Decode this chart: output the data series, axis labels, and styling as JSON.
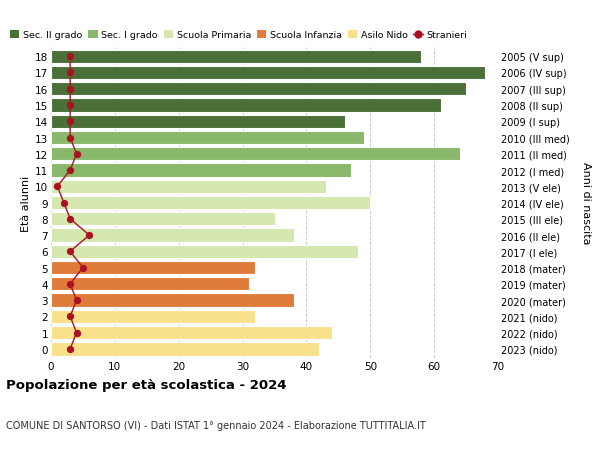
{
  "ages": [
    0,
    1,
    2,
    3,
    4,
    5,
    6,
    7,
    8,
    9,
    10,
    11,
    12,
    13,
    14,
    15,
    16,
    17,
    18
  ],
  "bar_values": [
    42,
    44,
    32,
    38,
    31,
    32,
    48,
    38,
    35,
    50,
    43,
    47,
    64,
    49,
    46,
    61,
    65,
    68,
    58
  ],
  "right_labels": [
    "2023 (nido)",
    "2022 (nido)",
    "2021 (nido)",
    "2020 (mater)",
    "2019 (mater)",
    "2018 (mater)",
    "2017 (I ele)",
    "2016 (II ele)",
    "2015 (III ele)",
    "2014 (IV ele)",
    "2013 (V ele)",
    "2012 (I med)",
    "2011 (II med)",
    "2010 (III med)",
    "2009 (I sup)",
    "2008 (II sup)",
    "2007 (III sup)",
    "2006 (IV sup)",
    "2005 (V sup)"
  ],
  "bar_colors": [
    "#f9e08a",
    "#f9e08a",
    "#f9e08a",
    "#e07c3a",
    "#e07c3a",
    "#e07c3a",
    "#d4e8b0",
    "#d4e8b0",
    "#d4e8b0",
    "#d4e8b0",
    "#d4e8b0",
    "#8ab86a",
    "#8ab86a",
    "#8ab86a",
    "#4a7038",
    "#4a7038",
    "#4a7038",
    "#4a7038",
    "#4a7038"
  ],
  "stranieri_values": [
    3,
    4,
    3,
    4,
    3,
    5,
    3,
    6,
    3,
    2,
    1,
    3,
    4,
    3,
    3,
    3,
    3,
    3,
    3
  ],
  "legend_labels": [
    "Sec. II grado",
    "Sec. I grado",
    "Scuola Primaria",
    "Scuola Infanzia",
    "Asilo Nido",
    "Stranieri"
  ],
  "legend_colors": [
    "#4a7038",
    "#8ab86a",
    "#d4e8b0",
    "#e07c3a",
    "#f9e08a",
    "#aa1122"
  ],
  "title": "Popolazione per età scolastica - 2024",
  "subtitle": "COMUNE DI SANTORSO (VI) - Dati ISTAT 1° gennaio 2024 - Elaborazione TUTTITALIA.IT",
  "ylabel_left": "Età alunni",
  "ylabel_right": "Anni di nascita",
  "xlim": [
    0,
    70
  ],
  "xticks": [
    0,
    10,
    20,
    30,
    40,
    50,
    60,
    70
  ],
  "background_color": "#ffffff",
  "grid_color": "#cccccc"
}
